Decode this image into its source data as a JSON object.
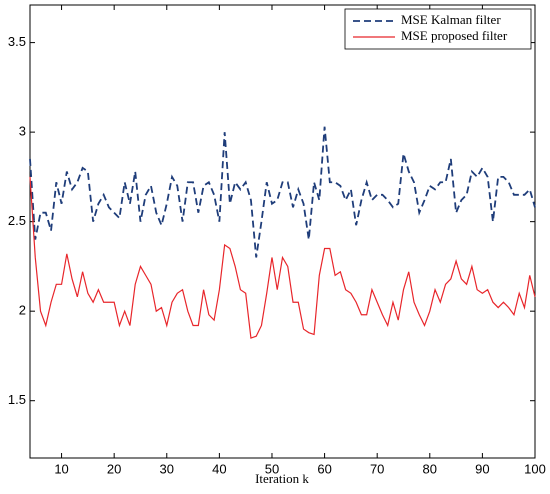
{
  "chart_data": {
    "type": "line",
    "x_label": "Iteration k",
    "x": [
      4,
      5,
      6,
      7,
      8,
      9,
      10,
      11,
      12,
      13,
      14,
      15,
      16,
      17,
      18,
      19,
      20,
      21,
      22,
      23,
      24,
      25,
      26,
      27,
      28,
      29,
      30,
      31,
      32,
      33,
      34,
      35,
      36,
      37,
      38,
      39,
      40,
      41,
      42,
      43,
      44,
      45,
      46,
      47,
      48,
      49,
      50,
      51,
      52,
      53,
      54,
      55,
      56,
      57,
      58,
      59,
      60,
      61,
      62,
      63,
      64,
      65,
      66,
      67,
      68,
      69,
      70,
      71,
      72,
      73,
      74,
      75,
      76,
      77,
      78,
      79,
      80,
      81,
      82,
      83,
      84,
      85,
      86,
      87,
      88,
      89,
      90,
      91,
      92,
      93,
      94,
      95,
      96,
      97,
      98,
      99,
      100
    ],
    "series": [
      {
        "name": "MSE Kalman filter",
        "color": "#1f3d7a",
        "dash": true,
        "values": [
          2.85,
          2.4,
          2.55,
          2.55,
          2.45,
          2.72,
          2.6,
          2.78,
          2.68,
          2.72,
          2.8,
          2.78,
          2.5,
          2.6,
          2.65,
          2.58,
          2.55,
          2.52,
          2.72,
          2.6,
          2.78,
          2.5,
          2.65,
          2.7,
          2.55,
          2.48,
          2.6,
          2.75,
          2.7,
          2.5,
          2.72,
          2.72,
          2.55,
          2.7,
          2.72,
          2.65,
          2.5,
          3.0,
          2.6,
          2.72,
          2.68,
          2.72,
          2.62,
          2.3,
          2.5,
          2.72,
          2.6,
          2.62,
          2.72,
          2.72,
          2.58,
          2.68,
          2.6,
          2.4,
          2.72,
          2.62,
          3.03,
          2.72,
          2.72,
          2.7,
          2.62,
          2.68,
          2.48,
          2.62,
          2.72,
          2.62,
          2.65,
          2.65,
          2.62,
          2.58,
          2.6,
          2.88,
          2.78,
          2.72,
          2.55,
          2.62,
          2.7,
          2.68,
          2.72,
          2.72,
          2.85,
          2.55,
          2.62,
          2.65,
          2.78,
          2.75,
          2.8,
          2.75,
          2.5,
          2.75,
          2.75,
          2.72,
          2.65,
          2.65,
          2.65,
          2.68,
          2.58
        ]
      },
      {
        "name": "MSE proposed filter",
        "color": "#e8262b",
        "dash": false,
        "values": [
          2.75,
          2.3,
          2.0,
          1.92,
          2.05,
          2.15,
          2.15,
          2.32,
          2.18,
          2.08,
          2.22,
          2.1,
          2.05,
          2.12,
          2.05,
          2.05,
          2.05,
          1.92,
          2.0,
          1.92,
          2.15,
          2.25,
          2.2,
          2.15,
          2.0,
          2.02,
          1.92,
          2.05,
          2.1,
          2.12,
          2.0,
          1.92,
          1.92,
          2.12,
          1.98,
          1.95,
          2.12,
          2.37,
          2.35,
          2.25,
          2.12,
          2.1,
          1.85,
          1.86,
          1.92,
          2.1,
          2.3,
          2.12,
          2.3,
          2.25,
          2.05,
          2.05,
          1.9,
          1.88,
          1.87,
          2.2,
          2.35,
          2.35,
          2.2,
          2.22,
          2.12,
          2.1,
          2.05,
          1.98,
          1.98,
          2.12,
          2.05,
          1.98,
          1.92,
          2.05,
          1.95,
          2.12,
          2.22,
          2.05,
          1.98,
          1.92,
          2.0,
          2.12,
          2.05,
          2.15,
          2.18,
          2.28,
          2.18,
          2.15,
          2.25,
          2.12,
          2.1,
          2.12,
          2.05,
          2.02,
          2.05,
          2.02,
          1.98,
          2.1,
          2.02,
          2.2,
          2.08
        ]
      }
    ],
    "xlim": [
      4,
      100
    ],
    "xticks": [
      10,
      20,
      30,
      40,
      50,
      60,
      70,
      80,
      90,
      100
    ],
    "ylim": [
      1.18,
      3.71
    ],
    "yticks": [
      1.5,
      2,
      2.5,
      3,
      3.5
    ],
    "legend": "upper right"
  }
}
